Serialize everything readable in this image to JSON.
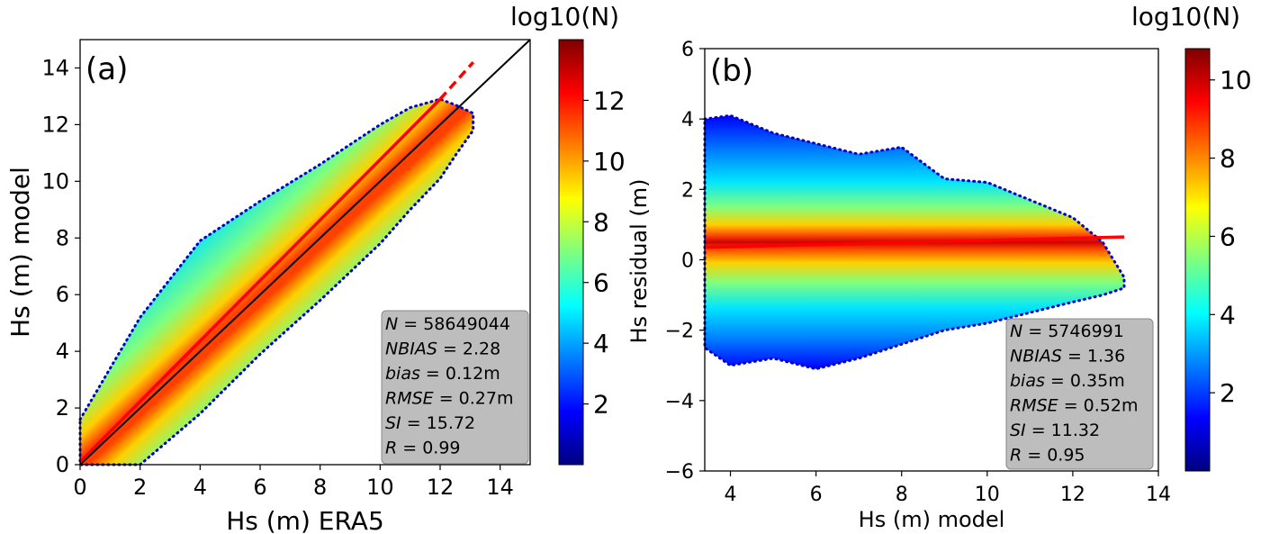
{
  "chart_data": [
    {
      "type": "scatter",
      "panel_label": "(a)",
      "title": "",
      "xlabel": "Hs (m) ERA5",
      "ylabel": "Hs (m) model",
      "xlim": [
        0,
        15
      ],
      "ylim": [
        0,
        15
      ],
      "xticks": [
        0,
        2,
        4,
        6,
        8,
        10,
        12,
        14
      ],
      "yticks": [
        0,
        2,
        4,
        6,
        8,
        10,
        12,
        14
      ],
      "density_band": {
        "x": [
          0,
          2,
          4,
          6,
          8,
          10,
          11,
          12,
          12.5,
          13.1
        ],
        "upper": [
          1.6,
          5.2,
          7.9,
          9.3,
          10.6,
          12.0,
          12.6,
          12.9,
          12.7,
          12.4
        ],
        "lower": [
          0,
          0,
          1.8,
          3.9,
          5.8,
          7.8,
          9.0,
          10.1,
          10.9,
          11.8
        ]
      },
      "series": [
        {
          "name": "1:1 line",
          "x": [
            0,
            15
          ],
          "y": [
            0,
            15
          ],
          "color": "#000000",
          "style": "solid"
        },
        {
          "name": "linear fit",
          "x": [
            0,
            12
          ],
          "y": [
            0.1,
            12.9
          ],
          "color": "#ff0000",
          "style": "solid"
        },
        {
          "name": "linear fit (extrapolated)",
          "x": [
            12,
            13.1
          ],
          "y": [
            12.9,
            14.2
          ],
          "color": "#ff0000",
          "style": "dashed"
        }
      ],
      "stats": [
        {
          "label": "N",
          "value": "58649044"
        },
        {
          "label": "NBIAS",
          "value": "2.28"
        },
        {
          "label": "bias",
          "value": "0.12m"
        },
        {
          "label": "RMSE",
          "value": "0.27m"
        },
        {
          "label": "SI",
          "value": "15.72"
        },
        {
          "label": "R",
          "value": "0.99"
        }
      ],
      "colorbar": {
        "label": "log10(N)",
        "range": [
          0,
          14
        ],
        "ticks": [
          2,
          4,
          6,
          8,
          10,
          12
        ]
      }
    },
    {
      "type": "scatter",
      "panel_label": "(b)",
      "title": "",
      "xlabel": "Hs (m) model",
      "ylabel": "Hs residual (m)",
      "xlim": [
        3.4,
        14
      ],
      "ylim": [
        -6,
        6
      ],
      "xticks": [
        4,
        6,
        8,
        10,
        12,
        14
      ],
      "yticks": [
        -6,
        -4,
        -2,
        0,
        2,
        4,
        6
      ],
      "density_band": {
        "x": [
          3.4,
          4,
          5,
          6,
          7,
          8,
          9,
          10,
          11,
          12,
          12.7,
          13.2
        ],
        "upper": [
          4.0,
          4.1,
          3.6,
          3.3,
          3.0,
          3.2,
          2.3,
          2.2,
          1.7,
          1.2,
          0.5,
          -0.5
        ],
        "lower": [
          -2.5,
          -3.0,
          -2.8,
          -3.1,
          -2.8,
          -2.4,
          -2.0,
          -1.8,
          -1.5,
          -1.2,
          -1.0,
          -0.8
        ]
      },
      "series": [
        {
          "name": "linear fit",
          "x": [
            3.4,
            13.2
          ],
          "y": [
            0.35,
            0.65
          ],
          "color": "#ff0000",
          "style": "solid"
        }
      ],
      "stats": [
        {
          "label": "N",
          "value": "5746991"
        },
        {
          "label": "NBIAS",
          "value": "1.36"
        },
        {
          "label": "bias",
          "value": "0.35m"
        },
        {
          "label": "RMSE",
          "value": "0.52m"
        },
        {
          "label": "SI",
          "value": "11.32"
        },
        {
          "label": "R",
          "value": "0.95"
        }
      ],
      "colorbar": {
        "label": "log10(N)",
        "range": [
          0,
          10.8
        ],
        "ticks": [
          2,
          4,
          6,
          8,
          10
        ]
      }
    }
  ],
  "colors": {
    "jet": [
      "#00007f",
      "#0000ff",
      "#007fff",
      "#00ffff",
      "#7fff7f",
      "#ffff00",
      "#ff7f00",
      "#ff0000",
      "#7f0000"
    ],
    "stats_box_bg": "#bdbdbd",
    "stats_box_border": "#888888"
  }
}
